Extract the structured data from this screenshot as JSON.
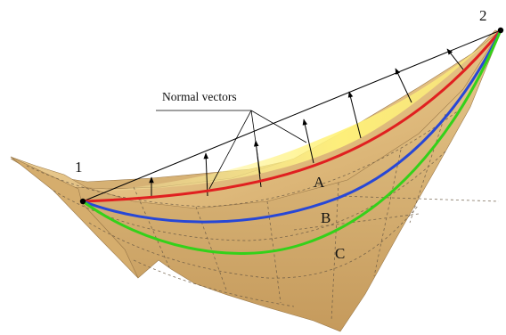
{
  "labels": {
    "normal_vectors": "Normal vectors",
    "point_1": "1",
    "point_2": "2",
    "curve_a": "A",
    "curve_b": "B",
    "curve_c": "C"
  },
  "colors": {
    "surface_light": "#f1dca1",
    "surface_mid": "#dfba7b",
    "surface_shadow": "#c39656",
    "highlight": "#fff176",
    "curve_a": "#e02020",
    "curve_b": "#2747d6",
    "curve_c": "#34d11a",
    "vectors": "#000000",
    "grid": "#6b5a44"
  }
}
